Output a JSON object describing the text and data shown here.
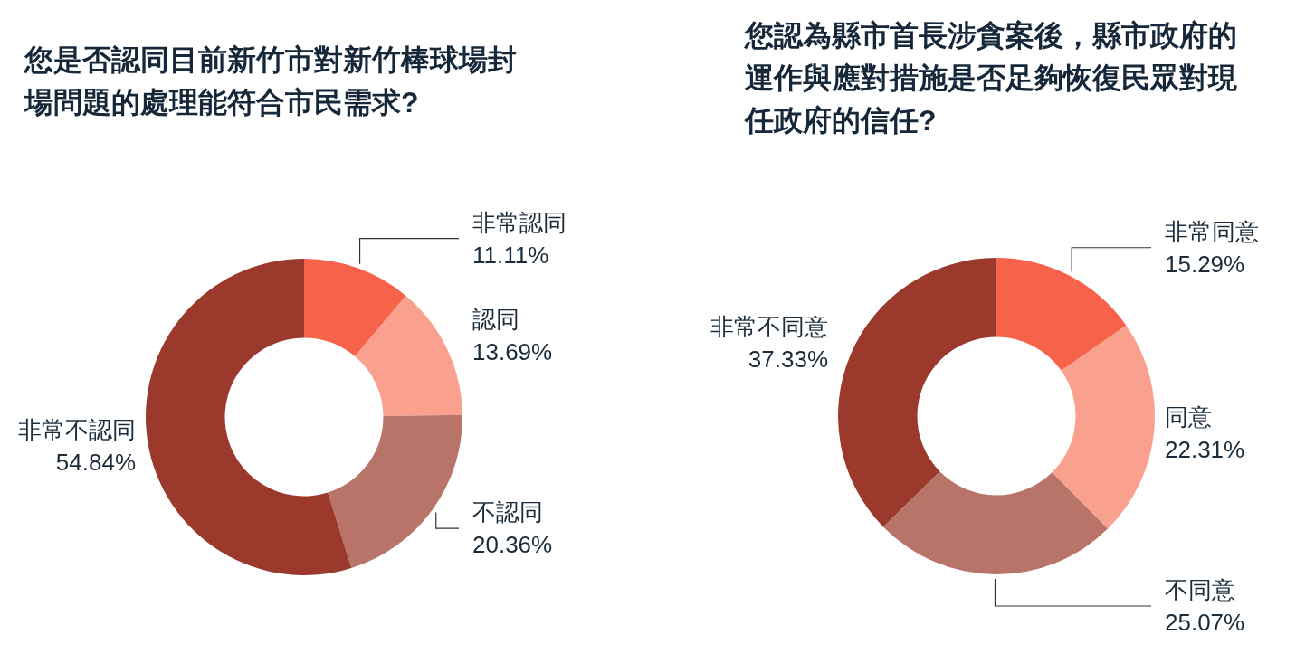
{
  "chart_data": [
    {
      "type": "donut",
      "title": "您是否認同目前新竹市對新竹棒球場封場問題的處理能符合市民需求?",
      "categories": [
        "非常認同",
        "認同",
        "不認同",
        "非常不認同"
      ],
      "values": [
        11.11,
        13.69,
        20.36,
        54.84
      ],
      "colors": [
        "#f7624a",
        "#f9a08e",
        "#b9746a",
        "#9b3a2c"
      ],
      "value_labels": [
        "11.11%",
        "13.69%",
        "20.36%",
        "54.84%"
      ]
    },
    {
      "type": "donut",
      "title": "您認為縣市首長涉貪案後，縣市政府的運作與應對措施是否足夠恢復民眾對現任政府的信任?",
      "categories": [
        "非常同意",
        "同意",
        "不同意",
        "非常不同意"
      ],
      "values": [
        15.29,
        22.31,
        25.07,
        37.33
      ],
      "colors": [
        "#f7624a",
        "#f9a08e",
        "#b9746a",
        "#9b3a2c"
      ],
      "value_labels": [
        "15.29%",
        "22.31%",
        "25.07%",
        "37.33%"
      ]
    }
  ]
}
